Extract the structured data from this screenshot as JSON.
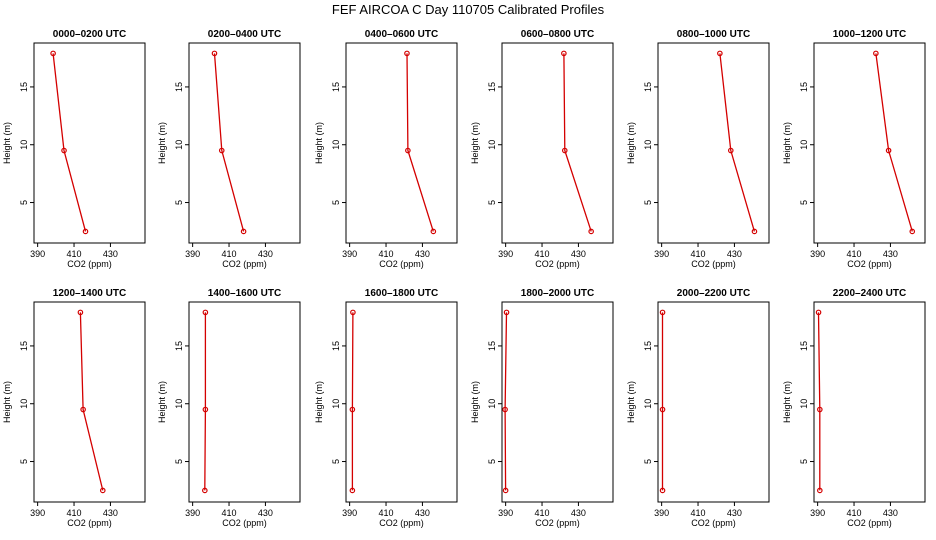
{
  "title": "FEF AIRCOA C  Day 110705  Calibrated Profiles",
  "chart_data": {
    "type": "line",
    "title": "FEF AIRCOA C  Day 110705  Calibrated Profiles",
    "xlabel": "CO2 (ppm)",
    "ylabel": "Height (m)",
    "xlim": [
      388,
      449
    ],
    "ylim": [
      1.5,
      18.8
    ],
    "xticks": [
      390,
      410,
      430
    ],
    "yticks": [
      5,
      10,
      15
    ],
    "heights": [
      17.9,
      9.5,
      2.5
    ],
    "panels": [
      {
        "title": "0000–0200 UTC",
        "co2": [
          398.5,
          404.5,
          416.3
        ]
      },
      {
        "title": "0200–0400 UTC",
        "co2": [
          402.0,
          406.0,
          418.0
        ]
      },
      {
        "title": "0400–0600 UTC",
        "co2": [
          421.5,
          422.0,
          436.0
        ]
      },
      {
        "title": "0600–0800 UTC",
        "co2": [
          422.0,
          422.5,
          437.0
        ]
      },
      {
        "title": "0800–1000 UTC",
        "co2": [
          422.0,
          428.0,
          441.0
        ]
      },
      {
        "title": "1000–1200 UTC",
        "co2": [
          422.0,
          429.0,
          442.0
        ]
      },
      {
        "title": "1200–1400 UTC",
        "co2": [
          413.5,
          415.0,
          425.8
        ]
      },
      {
        "title": "1400–1600 UTC",
        "co2": [
          397.0,
          397.0,
          396.7
        ]
      },
      {
        "title": "1600–1800 UTC",
        "co2": [
          391.8,
          391.5,
          391.5
        ]
      },
      {
        "title": "1800–2000 UTC",
        "co2": [
          390.5,
          389.7,
          390.0
        ]
      },
      {
        "title": "2000–2200 UTC",
        "co2": [
          390.5,
          390.5,
          390.5
        ]
      },
      {
        "title": "2200–2400 UTC",
        "co2": [
          390.5,
          391.2,
          391.2
        ]
      }
    ]
  }
}
